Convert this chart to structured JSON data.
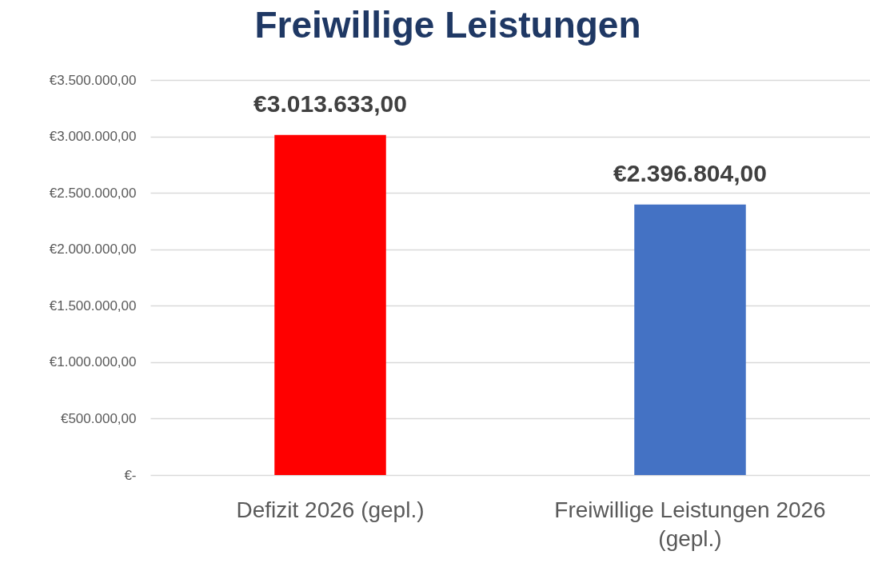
{
  "chart_data": {
    "type": "bar",
    "title": "Freiwillige Leistungen",
    "categories": [
      "Defizit 2026 (gepl.)",
      "Freiwillige Leistungen 2026 (gepl.)"
    ],
    "values": [
      3013633,
      2396804
    ],
    "colors": [
      "#ff0000",
      "#4472c4"
    ],
    "value_labels": [
      "€3.013.633,00",
      "€2.396.804,00"
    ],
    "ylim": [
      0,
      3500000
    ],
    "yticks": [
      {
        "value": 0,
        "label": "€-"
      },
      {
        "value": 500000,
        "label": "€500.000,00"
      },
      {
        "value": 1000000,
        "label": "€1.000.000,00"
      },
      {
        "value": 1500000,
        "label": "€1.500.000,00"
      },
      {
        "value": 2000000,
        "label": "€2.000.000,00"
      },
      {
        "value": 2500000,
        "label": "€2.500.000,00"
      },
      {
        "value": 3000000,
        "label": "€3.000.000,00"
      },
      {
        "value": 3500000,
        "label": "€3.500.000,00"
      }
    ],
    "grid": true
  }
}
